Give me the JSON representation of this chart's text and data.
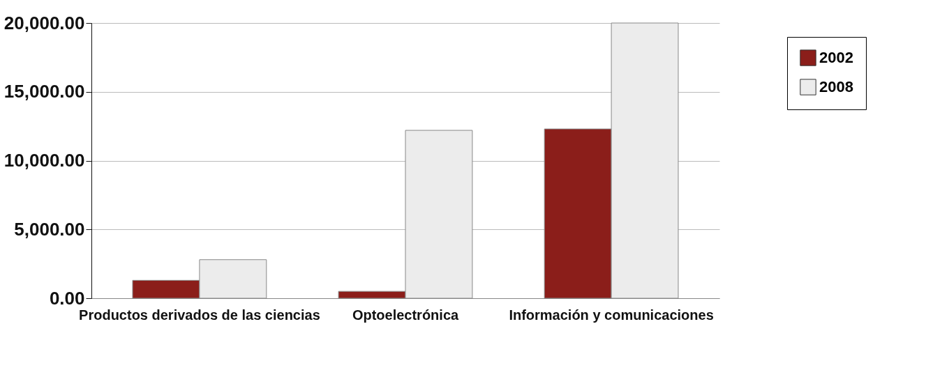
{
  "chart_data": {
    "type": "bar",
    "categories": [
      "Productos derivados de las ciencias",
      "Optoelectrónica",
      "Información y comunicaciones"
    ],
    "series": [
      {
        "name": "2002",
        "color": "#8b1e1a",
        "values": [
          1300,
          500,
          12300
        ]
      },
      {
        "name": "2008",
        "color": "#ececec",
        "values": [
          2800,
          12200,
          20000
        ]
      }
    ],
    "ylim": [
      0,
      20000
    ],
    "yticks": [
      {
        "value": 0,
        "label": "0.00"
      },
      {
        "value": 5000,
        "label": "5,000.00"
      },
      {
        "value": 10000,
        "label": "10,000.00"
      },
      {
        "value": 15000,
        "label": "15,000.00"
      },
      {
        "value": 20000,
        "label": "20,000.00"
      }
    ],
    "grid": "y",
    "legend": "top right"
  }
}
